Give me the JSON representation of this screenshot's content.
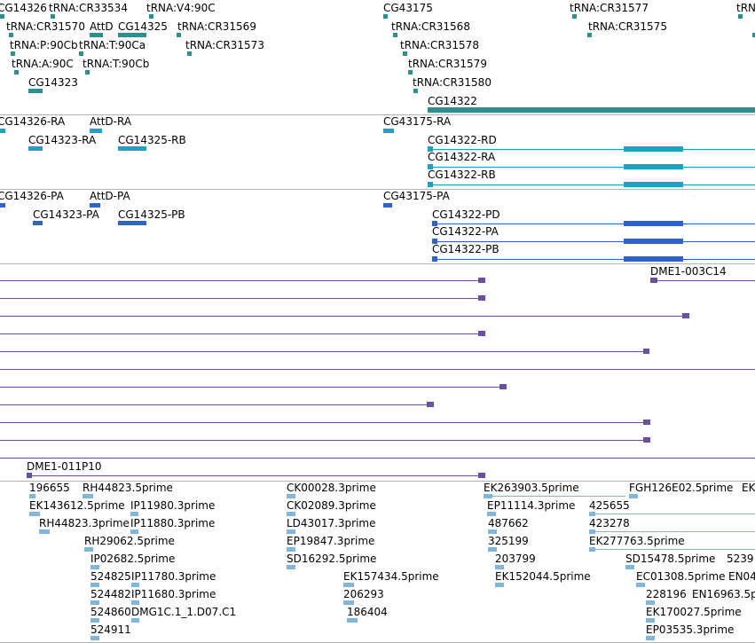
{
  "tracks": {
    "gene": {
      "labels": [
        "CG14326",
        "tRNA:CR33534",
        "tRNA:V4:90C",
        "tRNA:CR31570",
        "AttD",
        "CG14325",
        "tRNA:CR31569",
        "tRNA:P:90Cb",
        "tRNA:T:90Ca",
        "tRNA:CR31573",
        "tRNA:A:90C",
        "tRNA:T:90Cb",
        "CG14323",
        "CG43175",
        "tRNA:CR31568",
        "tRNA:CR31578",
        "tRNA:CR31579",
        "tRNA:CR31580",
        "CG14322",
        "tRNA:CR31577",
        "tRNA:CR31575",
        "tRN"
      ]
    },
    "transcripts_ra": {
      "labels": [
        "CG14326-RA",
        "AttD-RA",
        "CG14323-RA",
        "CG14325-RB",
        "CG43175-RA",
        "CG14322-RD",
        "CG14322-RA",
        "CG14322-RB"
      ]
    },
    "proteins_pa": {
      "labels": [
        "CG14326-PA",
        "AttD-PA",
        "CG14323-PA",
        "CG14325-PB",
        "CG43175-PA",
        "CG14322-PD",
        "CG14322-PA",
        "CG14322-PB"
      ]
    },
    "clones": {
      "labels": [
        "DME1-003C14",
        "DME1-011P10"
      ]
    },
    "ests": {
      "labels": [
        "196655",
        "RH44823.5prime",
        "EK143612.5prime",
        "IP11980.3prime",
        "RH44823.3prime",
        "IP11880.3prime",
        "RH29062.5prime",
        "IP02682.5prime",
        "524825",
        "IP11780.3prime",
        "524482",
        "IP11680.3prime",
        "524860",
        "DMG1C.1_1.D07.C1",
        "524911",
        "CK00028.3prime",
        "CK02089.3prime",
        "LD43017.3prime",
        "EP19847.3prime",
        "SD16292.5prime",
        "EK157434.5prime",
        "206293",
        "186404",
        "EK263903.5prime",
        "EP11114.3prime",
        "487662",
        "325199",
        "203799",
        "EK152044.5prime",
        "FGH126E02.5prime",
        "EK",
        "425655",
        "423278",
        "EK277763.5prime",
        "SD15478.5prime",
        "5239",
        "EC01308.5prime",
        "EN04",
        "228196",
        "EN16963.5p",
        "EK170027.5prime",
        "EP03535.3prime"
      ]
    }
  },
  "colors": {
    "gene": "#2f8f8f",
    "transcript": "#1aa3c2",
    "protein": "#2f62cc",
    "clone": "#6b4fa1",
    "est": "#7fb6da",
    "separator": "#b4b4b4"
  }
}
